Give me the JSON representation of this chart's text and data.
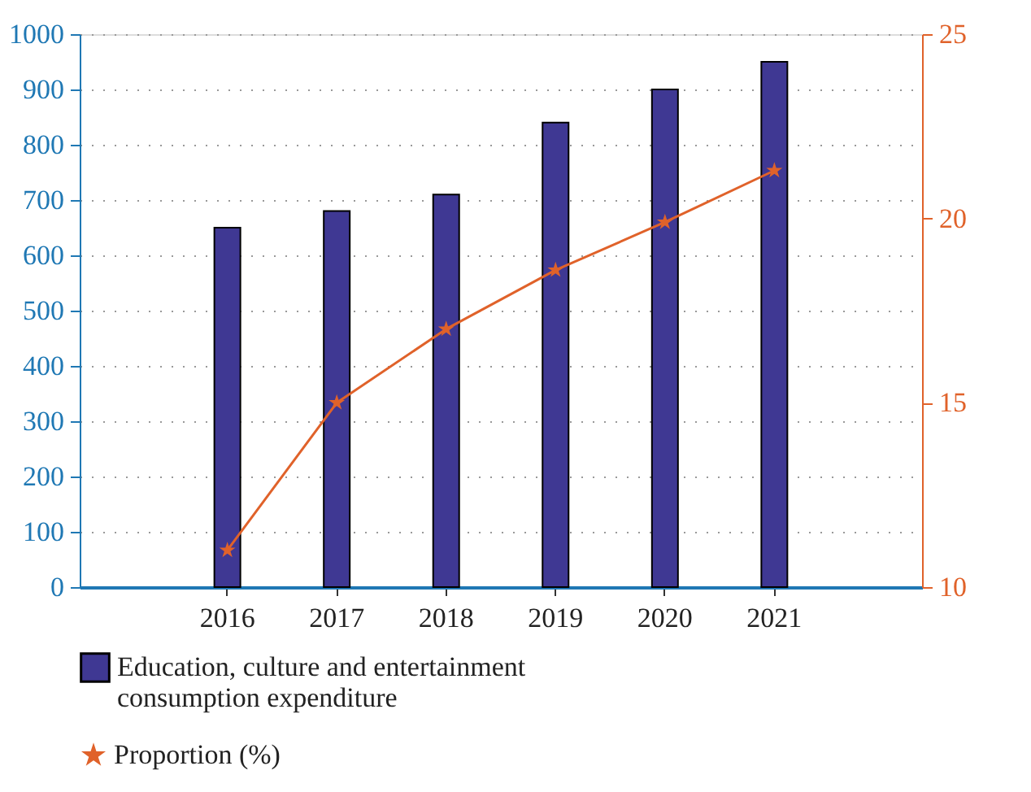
{
  "chart_data": {
    "type": "bar",
    "categories": [
      "2016",
      "2017",
      "2018",
      "2019",
      "2020",
      "2021"
    ],
    "series": [
      {
        "name": "Education, culture and entertainment consumption expenditure",
        "color": "#3f3893",
        "values": [
          650,
          680,
          710,
          840,
          900,
          950
        ]
      },
      {
        "name": "Proportion (%)",
        "type": "line",
        "axis": "y2",
        "color": "#e0622a",
        "marker": "star",
        "values": [
          11.0,
          15.0,
          17.0,
          18.6,
          19.9,
          21.3
        ]
      }
    ],
    "ylim": [
      0,
      1000
    ],
    "yticks": [
      0,
      100,
      200,
      300,
      400,
      500,
      600,
      700,
      800,
      900,
      1000
    ],
    "y2lim": [
      10,
      25
    ],
    "y2ticks": [
      10,
      15,
      20,
      25
    ],
    "grid": "y",
    "legend": "bottom left"
  }
}
